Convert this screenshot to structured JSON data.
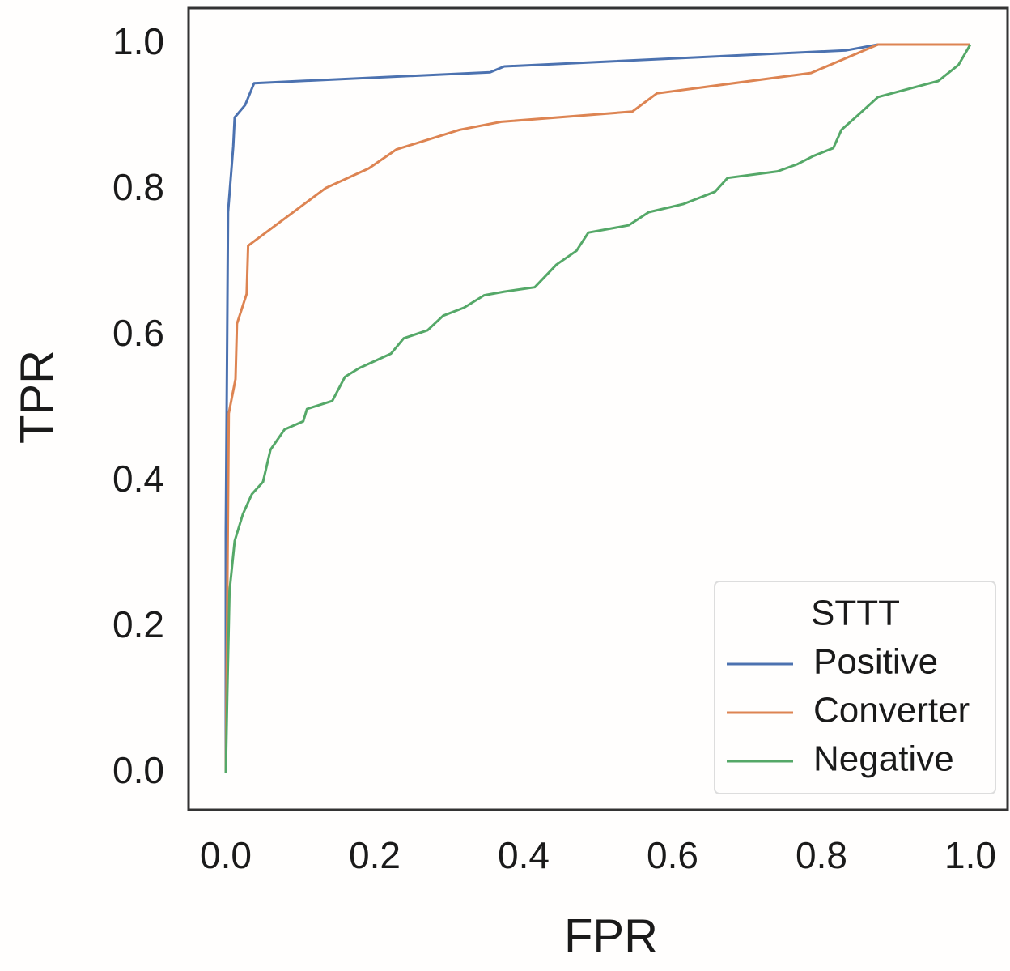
{
  "chart_data": {
    "type": "line",
    "x_label": "FPR",
    "y_label": "TPR",
    "xlim": [
      -0.05,
      1.05
    ],
    "ylim": [
      -0.05,
      1.05
    ],
    "xticks": [
      {
        "value": 0,
        "label": "0.0"
      },
      {
        "value": 0.2,
        "label": "0.2"
      },
      {
        "value": 0.4,
        "label": "0.4"
      },
      {
        "value": 0.6,
        "label": "0.6"
      },
      {
        "value": 0.8,
        "label": "0.8"
      },
      {
        "value": 1,
        "label": "1.0"
      }
    ],
    "yticks": [
      {
        "value": 0,
        "label": "0.0"
      },
      {
        "value": 0.2,
        "label": "0.2"
      },
      {
        "value": 0.4,
        "label": "0.4"
      },
      {
        "value": 0.6,
        "label": "0.6"
      },
      {
        "value": 0.8,
        "label": "0.8"
      },
      {
        "value": 1,
        "label": "1.0"
      }
    ],
    "grid": false,
    "legend_title": "STTT",
    "legend_position": "lower right",
    "series": [
      {
        "name": "Positive",
        "color": "#4c72b0",
        "x": [
          0,
          0,
          0.003,
          0.01,
          0.012,
          0.026,
          0.038,
          0.355,
          0.374,
          0.833,
          0.876,
          1.0
        ],
        "values": [
          0,
          0.33,
          0.77,
          0.86,
          0.9,
          0.917,
          0.947,
          0.962,
          0.97,
          0.992,
          1.0,
          1.0
        ]
      },
      {
        "name": "Converter",
        "color": "#dd8452",
        "x": [
          0,
          0.004,
          0.013,
          0.015,
          0.028,
          0.03,
          0.134,
          0.192,
          0.229,
          0.314,
          0.37,
          0.546,
          0.579,
          0.786,
          0.876,
          1.0
        ],
        "values": [
          0,
          0.494,
          0.541,
          0.617,
          0.658,
          0.724,
          0.803,
          0.83,
          0.856,
          0.883,
          0.894,
          0.908,
          0.933,
          0.961,
          1.0,
          1.0
        ]
      },
      {
        "name": "Negative",
        "color": "#55a868",
        "x": [
          0,
          0.002,
          0.005,
          0.012,
          0.023,
          0.035,
          0.05,
          0.06,
          0.079,
          0.104,
          0.109,
          0.143,
          0.16,
          0.179,
          0.222,
          0.239,
          0.271,
          0.292,
          0.32,
          0.347,
          0.374,
          0.415,
          0.444,
          0.471,
          0.487,
          0.541,
          0.568,
          0.614,
          0.657,
          0.674,
          0.741,
          0.768,
          0.789,
          0.816,
          0.827,
          0.849,
          0.876,
          0.957,
          0.984,
          1.0
        ],
        "values": [
          0,
          0.106,
          0.25,
          0.319,
          0.356,
          0.383,
          0.4,
          0.444,
          0.472,
          0.483,
          0.5,
          0.511,
          0.544,
          0.556,
          0.576,
          0.597,
          0.608,
          0.628,
          0.639,
          0.656,
          0.661,
          0.667,
          0.698,
          0.717,
          0.742,
          0.752,
          0.77,
          0.781,
          0.798,
          0.817,
          0.826,
          0.836,
          0.847,
          0.858,
          0.883,
          0.903,
          0.928,
          0.95,
          0.972,
          1.0
        ]
      }
    ]
  }
}
